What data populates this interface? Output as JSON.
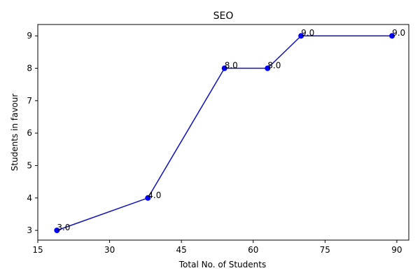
{
  "chart_data": {
    "type": "line",
    "title": "SEO",
    "xlabel": "Total No. of Students",
    "ylabel": "Students in favour",
    "x": [
      19,
      38,
      54,
      63,
      70,
      89
    ],
    "series": [
      {
        "values": [
          3.0,
          4.0,
          8.0,
          8.0,
          9.0,
          9.0
        ],
        "data_labels": [
          "3.0",
          "4.0",
          "8.0",
          "8.0",
          "9.0",
          "9.0"
        ]
      }
    ],
    "xlim": [
      15,
      92.5
    ],
    "ylim": [
      2.7,
      9.35
    ],
    "xticks": [
      15,
      30,
      45,
      60,
      75,
      90
    ],
    "yticks": [
      3,
      4,
      5,
      6,
      7,
      8,
      9
    ],
    "grid": false,
    "colors": {
      "line": "#1010c0",
      "marker": "#0000ff"
    }
  }
}
